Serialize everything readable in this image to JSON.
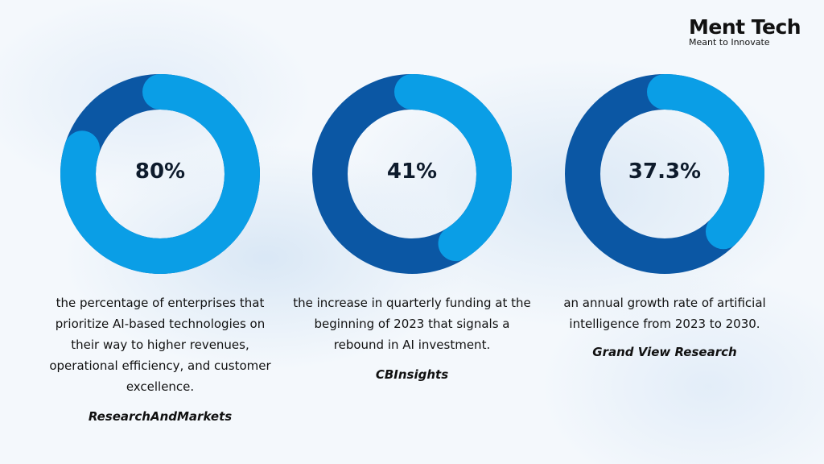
{
  "brand": {
    "name": "Ment Tech",
    "tagline": "Meant to Innovate",
    "accent_color": "#0a9ee6",
    "dark_color": "#0b57a4"
  },
  "chart_data": [
    {
      "type": "pie",
      "variant": "donut",
      "value_label": "80%",
      "slices": [
        {
          "value": 80,
          "color": "#0a9ee6"
        },
        {
          "value": 20,
          "color": "#0b57a4"
        }
      ],
      "description": "the percentage of enterprises that prioritize AI-based technologies on their way to higher revenues, operational efficiency, and customer excellence.",
      "source": "ResearchAndMarkets"
    },
    {
      "type": "pie",
      "variant": "donut",
      "value_label": "41%",
      "slices": [
        {
          "value": 41,
          "color": "#0a9ee6"
        },
        {
          "value": 59,
          "color": "#0b57a4"
        }
      ],
      "description": "the increase in quarterly funding at the beginning of 2023 that signals a rebound in AI investment.",
      "source": "CBInsights"
    },
    {
      "type": "pie",
      "variant": "donut",
      "value_label": "37.3%",
      "slices": [
        {
          "value": 37.3,
          "color": "#0a9ee6"
        },
        {
          "value": 62.7,
          "color": "#0b57a4"
        }
      ],
      "description": "an annual growth rate of artificial intelligence from 2023 to 2030.",
      "source": "Grand View Research"
    }
  ]
}
